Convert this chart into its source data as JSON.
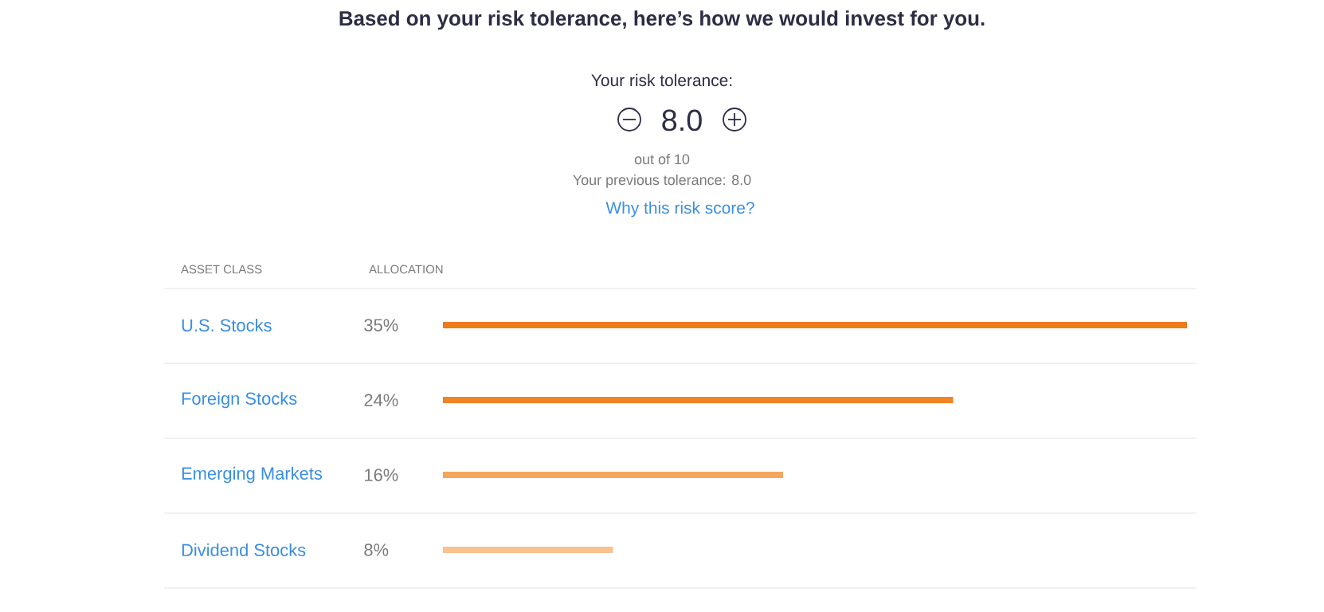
{
  "chart_data": {
    "type": "bar",
    "orientation": "horizontal",
    "title": "Based on your risk tolerance, here’s how we would invest for you.",
    "ylabel": "ASSET CLASS",
    "xlabel": "ALLOCATION",
    "annotations": [
      "Your risk tolerance:",
      "8.0",
      "out of 10",
      "Your previous tolerance: 8.0",
      "Why this risk score?"
    ],
    "categories": [
      "U.S. Stocks",
      "Foreign Stocks",
      "Emerging Markets",
      "Dividend Stocks"
    ],
    "values": [
      35,
      24,
      16,
      8
    ],
    "value_labels": [
      "35%",
      "24%",
      "16%",
      "8%"
    ],
    "colors": [
      "#ef7a1c",
      "#ef8424",
      "#f4a75c",
      "#f7c190"
    ],
    "xlim": [
      0,
      35
    ],
    "tick_labels": "y"
  }
}
